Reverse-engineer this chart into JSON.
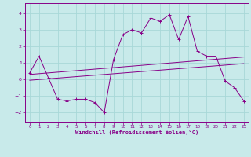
{
  "xlabel": "Windchill (Refroidissement éolien,°C)",
  "background_color": "#c8eaea",
  "grid_color": "#a8d8d8",
  "line_color": "#880088",
  "xlim": [
    -0.5,
    23.5
  ],
  "ylim": [
    -2.6,
    4.6
  ],
  "yticks": [
    -2,
    -1,
    0,
    1,
    2,
    3,
    4
  ],
  "xticks": [
    0,
    1,
    2,
    3,
    4,
    5,
    6,
    7,
    8,
    9,
    10,
    11,
    12,
    13,
    14,
    15,
    16,
    17,
    18,
    19,
    20,
    21,
    22,
    23
  ],
  "line1_x": [
    0,
    1,
    2,
    3,
    4,
    5,
    6,
    7,
    8,
    9,
    10,
    11,
    12,
    13,
    14,
    15,
    16,
    17,
    18,
    19,
    20,
    21,
    22,
    23
  ],
  "line1_y": [
    0.4,
    1.4,
    0.1,
    -1.2,
    -1.3,
    -1.2,
    -1.2,
    -1.4,
    -2.0,
    1.2,
    2.7,
    3.0,
    2.8,
    3.7,
    3.5,
    3.9,
    2.4,
    3.8,
    1.7,
    1.4,
    1.4,
    -0.1,
    -0.5,
    -1.3
  ],
  "line2_x": [
    0,
    23
  ],
  "line2_y": [
    0.3,
    1.35
  ],
  "line3_x": [
    0,
    23
  ],
  "line3_y": [
    -0.05,
    0.95
  ],
  "tick_fontsize": 4,
  "xlabel_fontsize": 5
}
